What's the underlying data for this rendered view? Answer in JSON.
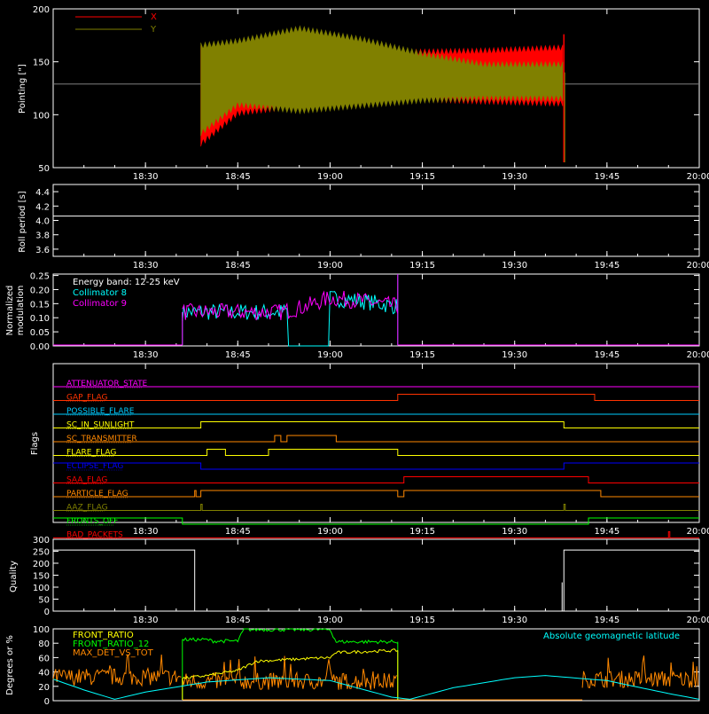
{
  "time_ticks": [
    "18:30",
    "18:45",
    "19:00",
    "19:15",
    "19:30",
    "19:45",
    "20:00"
  ],
  "panels": {
    "pointing": {
      "ylabel": "Pointing [\"]",
      "yticks": [
        "50",
        "100",
        "150",
        "200"
      ],
      "ylim": [
        50,
        200
      ],
      "legend": [
        {
          "name": "X",
          "color": "#ff0000"
        },
        {
          "name": "Y",
          "color": "#808000"
        }
      ],
      "reference_level": 129,
      "reference_color": "#808080",
      "data_start": "18:39",
      "data_end": "19:38",
      "spike_range": [
        55,
        176
      ],
      "x_envelope": [
        {
          "t": "18:39",
          "min": 70,
          "max": 165
        },
        {
          "t": "18:45",
          "min": 99,
          "max": 162
        },
        {
          "t": "18:55",
          "min": 106,
          "max": 158
        },
        {
          "t": "19:05",
          "min": 112,
          "max": 160
        },
        {
          "t": "19:15",
          "min": 112,
          "max": 162
        },
        {
          "t": "19:25",
          "min": 110,
          "max": 163
        },
        {
          "t": "19:38",
          "min": 108,
          "max": 166
        }
      ],
      "y_envelope": [
        {
          "t": "18:39",
          "min": 80,
          "max": 168
        },
        {
          "t": "18:45",
          "min": 107,
          "max": 172
        },
        {
          "t": "18:55",
          "min": 101,
          "max": 184
        },
        {
          "t": "19:05",
          "min": 106,
          "max": 174
        },
        {
          "t": "19:15",
          "min": 111,
          "max": 160
        },
        {
          "t": "19:25",
          "min": 113,
          "max": 150
        },
        {
          "t": "19:38",
          "min": 113,
          "max": 150
        }
      ]
    },
    "roll": {
      "ylabel": "Roll period [s]",
      "yticks": [
        "3.6",
        "3.8",
        "4.0",
        "4.2",
        "4.4"
      ],
      "ylim": [
        3.5,
        4.5
      ],
      "value": 4.06,
      "color": "#ffffff"
    },
    "modulation": {
      "ylabel_line1": "Normalized",
      "ylabel_line2": "modulation",
      "yticks": [
        "0.00",
        "0.05",
        "0.10",
        "0.15",
        "0.20",
        "0.25"
      ],
      "ylim": [
        0,
        0.255
      ],
      "annotation": "Energy band: 12-25 keV",
      "series": [
        {
          "name": "Collimator 8",
          "color": "#00ffff"
        },
        {
          "name": "Collimator 9",
          "color": "#ff00ff"
        }
      ],
      "active_start": "18:36",
      "active_end": "19:11",
      "c8_gaps": [
        [
          "18:53",
          "19:00"
        ]
      ],
      "trend": [
        {
          "t": "18:36",
          "v": 0.12
        },
        {
          "t": "18:52",
          "v": 0.12
        },
        {
          "t": "18:56",
          "v": 0.14
        },
        {
          "t": "19:00",
          "v": 0.17
        },
        {
          "t": "19:05",
          "v": 0.16
        },
        {
          "t": "19:11",
          "v": 0.14
        }
      ]
    },
    "flags": {
      "ylabel": "Flags",
      "rows": [
        {
          "name": "ATTENUATOR_STATE",
          "color": "#ff00ff",
          "segments": []
        },
        {
          "name": "GAP_FLAG",
          "color": "#ff3300",
          "segments": [
            [
              "19:11",
              "19:43"
            ]
          ]
        },
        {
          "name": "POSSIBLE_FLARE",
          "color": "#00ccff",
          "segments": []
        },
        {
          "name": "SC_IN_SUNLIGHT",
          "color": "#ffff00",
          "segments": [
            [
              "18:39",
              "19:38"
            ]
          ]
        },
        {
          "name": "SC_TRANSMITTER",
          "color": "#ff8800",
          "segments": [
            [
              "18:51",
              "18:52"
            ],
            [
              "18:53",
              "19:01"
            ]
          ]
        },
        {
          "name": "FLARE_FLAG",
          "color": "#ffff00",
          "segments": [
            [
              "18:40",
              "18:43"
            ],
            [
              "18:50",
              "19:11"
            ]
          ]
        },
        {
          "name": "ECLIPSE_FLAG",
          "color": "#0000ff",
          "segments": [
            [
              "18:39",
              "19:38"
            ]
          ],
          "inverted": true
        },
        {
          "name": "SAA_FLAG",
          "color": "#ff0000",
          "segments": [
            [
              "19:12",
              "19:42"
            ]
          ]
        },
        {
          "name": "PARTICLE_FLAG",
          "color": "#ff8800",
          "segments": [
            [
              "18:38",
              "18:38"
            ],
            [
              "18:39",
              "19:11"
            ],
            [
              "19:12",
              "19:44"
            ]
          ]
        },
        {
          "name": "AAZ_FLAG",
          "color": "#808000",
          "segments": [
            [
              "18:39",
              "18:39"
            ],
            [
              "19:38",
              "19:38"
            ]
          ]
        },
        {
          "name": "FRONTS_OFF",
          "color": "#00ff00",
          "segments": [
            [
              "18:36",
              "19:42"
            ]
          ],
          "inverted": true
        },
        {
          "name": "BAD_PACKETS",
          "color": "#ff0000",
          "segments": [
            [
              "19:55",
              "19:55"
            ]
          ]
        }
      ]
    },
    "quality": {
      "ylabel": "Quality",
      "yticks": [
        "0",
        "50",
        "100",
        "150",
        "200",
        "250",
        "300"
      ],
      "ylim": [
        0,
        300
      ],
      "segments": [
        {
          "t0": "18:15",
          "t1": "18:38",
          "v": 255
        },
        {
          "t0": "18:38",
          "t1": "19:38",
          "v": 0
        },
        {
          "t0": "19:38",
          "t1": "20:00",
          "v": 255
        }
      ]
    },
    "degrees": {
      "ylabel": "Degrees or %",
      "yticks": [
        "0",
        "20",
        "40",
        "60",
        "80",
        "100"
      ],
      "ylim": [
        0,
        100
      ],
      "legend": [
        {
          "name": "FRONT_RATIO",
          "color": "#ffff00"
        },
        {
          "name": "FRONT_RATIO_12",
          "color": "#00ff00"
        },
        {
          "name": "MAX_DET_VS_TOT",
          "color": "#ff8800"
        }
      ],
      "right_label": "Absolute geomagnetic latitude",
      "right_label_color": "#00ffff",
      "front_ratio": [
        {
          "t": "18:36",
          "v": 31
        },
        {
          "t": "18:40",
          "v": 35
        },
        {
          "t": "18:45",
          "v": 42
        },
        {
          "t": "18:48",
          "v": 55
        },
        {
          "t": "18:55",
          "v": 58
        },
        {
          "t": "19:00",
          "v": 60
        },
        {
          "t": "19:01",
          "v": 67
        },
        {
          "t": "19:11",
          "v": 70
        }
      ],
      "front_ratio_12": [
        {
          "t": "18:36",
          "v": 85
        },
        {
          "t": "18:40",
          "v": 85
        },
        {
          "t": "18:41",
          "v": 83
        },
        {
          "t": "18:45",
          "v": 83
        },
        {
          "t": "18:46",
          "v": 99
        },
        {
          "t": "19:00",
          "v": 99
        },
        {
          "t": "19:01",
          "v": 82
        },
        {
          "t": "19:11",
          "v": 82
        }
      ],
      "max_det_windows": [
        {
          "t0": "18:15",
          "t1": "18:36",
          "level": 33
        },
        {
          "t0": "18:36",
          "t1": "19:11",
          "level": 27
        },
        {
          "t0": "19:41",
          "t1": "20:00",
          "level": 30
        }
      ],
      "latitude": [
        {
          "t": "18:15",
          "v": 30
        },
        {
          "t": "18:20",
          "v": 15
        },
        {
          "t": "18:25",
          "v": 2
        },
        {
          "t": "18:30",
          "v": 12
        },
        {
          "t": "18:40",
          "v": 26
        },
        {
          "t": "18:50",
          "v": 32
        },
        {
          "t": "19:00",
          "v": 28
        },
        {
          "t": "19:10",
          "v": 5
        },
        {
          "t": "19:13",
          "v": 2
        },
        {
          "t": "19:20",
          "v": 18
        },
        {
          "t": "19:30",
          "v": 32
        },
        {
          "t": "19:35",
          "v": 35
        },
        {
          "t": "19:45",
          "v": 28
        },
        {
          "t": "19:55",
          "v": 10
        },
        {
          "t": "20:00",
          "v": 2
        }
      ]
    }
  }
}
